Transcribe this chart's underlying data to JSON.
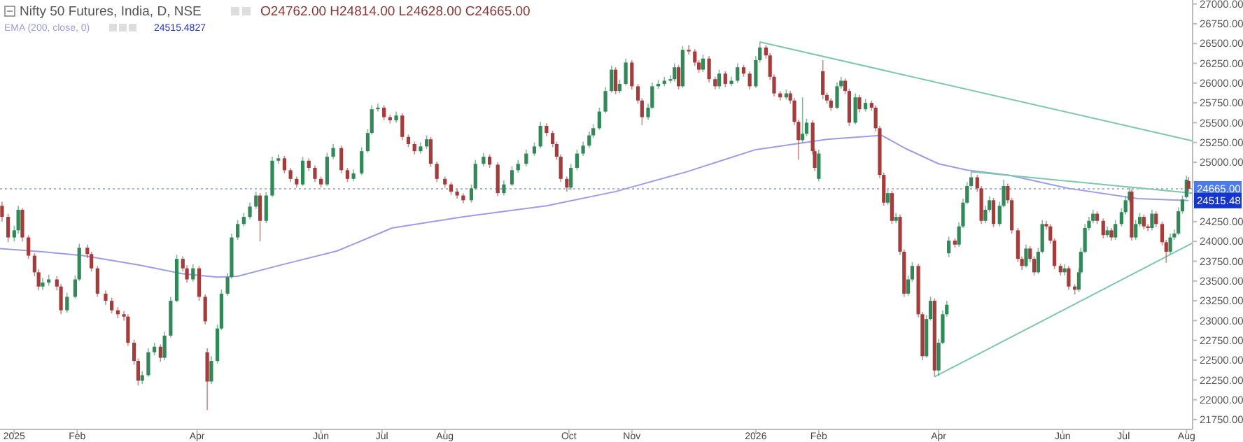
{
  "chart_data": {
    "type": "candlestick",
    "title": "Nifty 50 Futures, India, D, NSE",
    "annotations": [
      "O24762.00 H24814.00 L24628.00 C24665.00",
      "24515.4827",
      {
        "text": "24515.48",
        "x": "2026-08-04",
        "y": 24515.48
      }
    ],
    "legend": "top left",
    "grid": false,
    "xlim": [
      "2024-12-25",
      "2026-08-04"
    ],
    "xticks": [
      {
        "value": "2025-01-01",
        "label": "2025"
      },
      {
        "value": "2025-02-01",
        "label": "Feb"
      },
      {
        "value": "2025-04-01",
        "label": "Apr"
      },
      {
        "value": "2025-06-01",
        "label": "Jun"
      },
      {
        "value": "2025-07-01",
        "label": "Jul"
      },
      {
        "value": "2025-08-01",
        "label": "Aug"
      },
      {
        "value": "2025-10-01",
        "label": "Oct"
      },
      {
        "value": "2025-11-01",
        "label": "Nov"
      },
      {
        "value": "2026-01-01",
        "label": "2026"
      },
      {
        "value": "2026-02-01",
        "label": "Feb"
      },
      {
        "value": "2026-04-01",
        "label": "Apr"
      },
      {
        "value": "2026-06-01",
        "label": "Jun"
      },
      {
        "value": "2026-07-01",
        "label": "Jul"
      },
      {
        "value": "2026-08-01",
        "label": "Aug"
      }
    ],
    "ylim": [
      21625,
      27050
    ],
    "yticks": [
      {
        "value": 21750,
        "label": "21750.00"
      },
      {
        "value": 22000,
        "label": "22000.00"
      },
      {
        "value": 22250,
        "label": "22250.00"
      },
      {
        "value": 22500,
        "label": "22500.00"
      },
      {
        "value": 22750,
        "label": "22750.00"
      },
      {
        "value": 23000,
        "label": "23000.00"
      },
      {
        "value": 23250,
        "label": "23250.00"
      },
      {
        "value": 23500,
        "label": "23500.00"
      },
      {
        "value": 23750,
        "label": "23750.00"
      },
      {
        "value": 24000,
        "label": "24000.00"
      },
      {
        "value": 24250,
        "label": "24250.00"
      },
      {
        "value": 24500,
        "label": null
      },
      {
        "value": 24750,
        "label": null
      },
      {
        "value": 25000,
        "label": "25000.00"
      },
      {
        "value": 25250,
        "label": "25250.00"
      },
      {
        "value": 25500,
        "label": "25500.00"
      },
      {
        "value": 25750,
        "label": "25750.00"
      },
      {
        "value": 26000,
        "label": "26000.00"
      },
      {
        "value": 26250,
        "label": "26250.00"
      },
      {
        "value": 26500,
        "label": "26500.00"
      },
      {
        "value": 26750,
        "label": "26750.00"
      },
      {
        "value": 27000,
        "label": "27000.00"
      }
    ],
    "ref_lines": [
      {
        "axis": "y",
        "value": 24665,
        "label": "24665.00",
        "color": "#aab4dc",
        "line_style": "dotted"
      }
    ],
    "series": [
      {
        "type": "line",
        "name": "EMA (200, close, 0)",
        "color": "#9c9cec",
        "x": [
          "2024-12-25",
          "2025-01-15",
          "2025-02-04",
          "2025-03-04",
          "2025-03-25",
          "2025-04-11",
          "2025-04-21",
          "2025-05-12",
          "2025-06-09",
          "2025-07-06",
          "2025-08-10",
          "2025-09-20",
          "2025-10-24",
          "2025-11-28",
          "2026-01-01",
          "2026-02-05",
          "2026-03-04",
          "2026-03-16",
          "2026-04-01",
          "2026-04-15",
          "2026-05-05",
          "2026-06-04",
          "2026-07-08",
          "2026-08-02"
        ],
        "values": [
          23910,
          23870,
          23820,
          23700,
          23590,
          23550,
          23560,
          23700,
          23880,
          24170,
          24310,
          24450,
          24630,
          24880,
          25160,
          25290,
          25340,
          25170,
          24980,
          24900,
          24840,
          24670,
          24540,
          24515.48
        ]
      },
      {
        "type": "line",
        "color": "#7cc9a9",
        "x": [
          "2026-01-03",
          "2026-08-04"
        ],
        "values": [
          26520,
          25270
        ]
      },
      {
        "type": "line",
        "color": "#7cc9a9",
        "x": [
          "2026-04-17",
          "2026-08-04"
        ],
        "values": [
          24880,
          24610
        ]
      },
      {
        "type": "line",
        "color": "#7cc9a9",
        "x": [
          "2026-03-30",
          "2026-08-04"
        ],
        "values": [
          22290,
          23980
        ]
      },
      {
        "color": "#2e8b57",
        "x": [
          "2025-01-01",
          "2025-01-03",
          "2025-01-15",
          "2025-01-18",
          "2025-01-27",
          "2025-01-31",
          "2025-02-02",
          "2025-03-05",
          "2025-03-08",
          "2025-03-11",
          "2025-03-16",
          "2025-03-19",
          "2025-03-22",
          "2025-03-30",
          "2025-04-08",
          "2025-04-11",
          "2025-04-13",
          "2025-04-16",
          "2025-04-18",
          "2025-04-21",
          "2025-04-24",
          "2025-04-27",
          "2025-04-30",
          "2025-05-05",
          "2025-05-08",
          "2025-05-11",
          "2025-05-23",
          "2025-06-04",
          "2025-06-07",
          "2025-06-17",
          "2025-06-21",
          "2025-06-24",
          "2025-06-26",
          "2025-06-29",
          "2025-07-08",
          "2025-07-20",
          "2025-07-23",
          "2025-08-14",
          "2025-08-16",
          "2025-08-20",
          "2025-08-30",
          "2025-09-03",
          "2025-09-06",
          "2025-09-10",
          "2025-09-14",
          "2025-09-17",
          "2025-10-02",
          "2025-10-05",
          "2025-10-08",
          "2025-10-11",
          "2025-10-13",
          "2025-10-16",
          "2025-10-19",
          "2025-10-22",
          "2025-10-26",
          "2025-10-29",
          "2025-11-09",
          "2025-11-11",
          "2025-11-14",
          "2025-11-17",
          "2025-11-20",
          "2025-11-22",
          "2025-11-26",
          "2025-12-06",
          "2025-12-14",
          "2025-12-20",
          "2025-12-23",
          "2026-01-01",
          "2026-01-03",
          "2026-01-16",
          "2026-01-24",
          "2026-01-26",
          "2026-02-01",
          "2026-02-10",
          "2026-02-12",
          "2026-02-19",
          "2026-02-24",
          "2026-03-07",
          "2026-03-11",
          "2026-03-17",
          "2026-03-19",
          "2026-03-26",
          "2026-03-28",
          "2026-04-01",
          "2026-04-03",
          "2026-04-05",
          "2026-04-06",
          "2026-04-11",
          "2026-04-13",
          "2026-04-15",
          "2026-04-17",
          "2026-04-24",
          "2026-04-26",
          "2026-05-01",
          "2026-05-03",
          "2026-05-14",
          "2026-05-20",
          "2026-05-22",
          "2026-06-02",
          "2026-06-09",
          "2026-06-10",
          "2026-06-12",
          "2026-06-14",
          "2026-06-16",
          "2026-06-23",
          "2026-06-27",
          "2026-06-30",
          "2026-07-02",
          "2026-07-04",
          "2026-07-07",
          "2026-07-09",
          "2026-07-15",
          "2026-07-24",
          "2026-07-26",
          "2026-07-28",
          "2026-07-30",
          "2026-08-01"
        ],
        "ohlc": [
          [
            24050,
            24200,
            24000,
            24140
          ],
          [
            24140,
            24450,
            24100,
            24400
          ],
          [
            23430,
            23540,
            23390,
            23480
          ],
          [
            23480,
            23580,
            23440,
            23520
          ],
          [
            23130,
            23350,
            23100,
            23300
          ],
          [
            23300,
            23570,
            23280,
            23520
          ],
          [
            23520,
            23970,
            23500,
            23920
          ],
          [
            22240,
            22360,
            22200,
            22310
          ],
          [
            22310,
            22650,
            22290,
            22600
          ],
          [
            22600,
            22720,
            22560,
            22670
          ],
          [
            22530,
            22860,
            22500,
            22810
          ],
          [
            22810,
            23300,
            22790,
            23250
          ],
          [
            23250,
            23830,
            23230,
            23780
          ],
          [
            23520,
            23710,
            23490,
            23660
          ],
          [
            22230,
            22550,
            22200,
            22490
          ],
          [
            22490,
            22950,
            22460,
            22900
          ],
          [
            22900,
            23390,
            22880,
            23340
          ],
          [
            23340,
            23600,
            23310,
            23550
          ],
          [
            23550,
            24100,
            23530,
            24050
          ],
          [
            24050,
            24270,
            24020,
            24220
          ],
          [
            24220,
            24360,
            24190,
            24310
          ],
          [
            24310,
            24490,
            24280,
            24440
          ],
          [
            24440,
            24630,
            24410,
            24580
          ],
          [
            24260,
            24620,
            24230,
            24580
          ],
          [
            24580,
            25070,
            24560,
            25020
          ],
          [
            25020,
            25100,
            24980,
            25050
          ],
          [
            24720,
            25070,
            24700,
            25020
          ],
          [
            24720,
            25120,
            24700,
            25070
          ],
          [
            25070,
            25230,
            25040,
            25180
          ],
          [
            24790,
            24910,
            24760,
            24860
          ],
          [
            24860,
            25190,
            24840,
            25140
          ],
          [
            25140,
            25420,
            25120,
            25370
          ],
          [
            25370,
            25720,
            25350,
            25670
          ],
          [
            25670,
            25740,
            25640,
            25690
          ],
          [
            25530,
            25640,
            25500,
            25590
          ],
          [
            25140,
            25250,
            25110,
            25200
          ],
          [
            25200,
            25340,
            25170,
            25290
          ],
          [
            24520,
            24720,
            24490,
            24670
          ],
          [
            24670,
            25030,
            24650,
            24980
          ],
          [
            24980,
            25120,
            24950,
            25070
          ],
          [
            24610,
            24770,
            24580,
            24720
          ],
          [
            24720,
            24950,
            24700,
            24900
          ],
          [
            24900,
            25030,
            24870,
            24980
          ],
          [
            24980,
            25160,
            24950,
            25110
          ],
          [
            25110,
            25250,
            25080,
            25200
          ],
          [
            25200,
            25510,
            25180,
            25460
          ],
          [
            24680,
            24980,
            24650,
            24930
          ],
          [
            24930,
            25160,
            24900,
            25110
          ],
          [
            25110,
            25260,
            25080,
            25210
          ],
          [
            25210,
            25390,
            25180,
            25340
          ],
          [
            25340,
            25480,
            25310,
            25430
          ],
          [
            25430,
            25690,
            25410,
            25640
          ],
          [
            25640,
            25950,
            25620,
            25900
          ],
          [
            25900,
            26220,
            25880,
            26170
          ],
          [
            25900,
            26040,
            25870,
            25990
          ],
          [
            25990,
            26310,
            25970,
            26260
          ],
          [
            25570,
            25740,
            25540,
            25690
          ],
          [
            25690,
            26010,
            25670,
            25960
          ],
          [
            25960,
            26040,
            25930,
            25990
          ],
          [
            25990,
            26080,
            25960,
            26030
          ],
          [
            26030,
            26100,
            26000,
            26050
          ],
          [
            26050,
            26250,
            26020,
            26200
          ],
          [
            25960,
            26470,
            25940,
            26420
          ],
          [
            26170,
            26360,
            26140,
            26310
          ],
          [
            25960,
            26170,
            25930,
            26120
          ],
          [
            25990,
            26080,
            25960,
            26030
          ],
          [
            26030,
            26250,
            26000,
            26200
          ],
          [
            25960,
            26340,
            25940,
            26290
          ],
          [
            26290,
            26520,
            26260,
            26450
          ],
          [
            25820,
            25920,
            25790,
            25870
          ],
          [
            25280,
            25820,
            25250,
            25360
          ],
          [
            25360,
            25550,
            25330,
            25500
          ],
          [
            24790,
            25160,
            24760,
            25110
          ],
          [
            25690,
            26010,
            25670,
            25960
          ],
          [
            25960,
            26080,
            25930,
            26030
          ],
          [
            25500,
            25870,
            25480,
            25820
          ],
          [
            25670,
            25800,
            25640,
            25750
          ],
          [
            24490,
            24660,
            24460,
            24610
          ],
          [
            24260,
            24360,
            24230,
            24310
          ],
          [
            23340,
            23570,
            23310,
            23520
          ],
          [
            23520,
            23740,
            23490,
            23690
          ],
          [
            22550,
            23070,
            22530,
            23020
          ],
          [
            23020,
            23300,
            23000,
            23250
          ],
          [
            22370,
            22770,
            22300,
            22720
          ],
          [
            22720,
            23130,
            22700,
            23080
          ],
          [
            23080,
            23250,
            23050,
            23200
          ],
          [
            23850,
            24060,
            23800,
            24010
          ],
          [
            23960,
            24240,
            23930,
            24190
          ],
          [
            24190,
            24540,
            24170,
            24490
          ],
          [
            24490,
            24750,
            24470,
            24700
          ],
          [
            24700,
            24880,
            24680,
            24810
          ],
          [
            24260,
            24450,
            24230,
            24400
          ],
          [
            24400,
            24570,
            24370,
            24520
          ],
          [
            24220,
            24500,
            24190,
            24450
          ],
          [
            24450,
            24780,
            24430,
            24700
          ],
          [
            23690,
            23960,
            23670,
            23910
          ],
          [
            23610,
            23920,
            23590,
            23870
          ],
          [
            23870,
            24270,
            23850,
            24220
          ],
          [
            23610,
            23710,
            23570,
            23660
          ],
          [
            23390,
            23660,
            23360,
            23610
          ],
          [
            23610,
            23920,
            23590,
            23870
          ],
          [
            23870,
            24220,
            23850,
            24170
          ],
          [
            24170,
            24310,
            24140,
            24260
          ],
          [
            24260,
            24400,
            24230,
            24350
          ],
          [
            24080,
            24190,
            24050,
            24140
          ],
          [
            24050,
            24270,
            24020,
            24220
          ],
          [
            24220,
            24420,
            24190,
            24370
          ],
          [
            24370,
            24570,
            24340,
            24520
          ],
          [
            24520,
            24680,
            24490,
            24630
          ],
          [
            24050,
            24270,
            24020,
            24220
          ],
          [
            24220,
            24360,
            24190,
            24310
          ],
          [
            24170,
            24400,
            24140,
            24350
          ],
          [
            23870,
            24100,
            23840,
            24050
          ],
          [
            24050,
            24150,
            24020,
            24100
          ],
          [
            24100,
            24430,
            24080,
            24380
          ],
          [
            24380,
            24580,
            24350,
            24530
          ],
          [
            24560,
            24830,
            24540,
            24780
          ]
        ]
      },
      {
        "color": "#a83a3a",
        "x": [
          "2024-12-26",
          "2024-12-29",
          "2025-01-05",
          "2025-01-08",
          "2025-01-11",
          "2025-01-13",
          "2025-01-22",
          "2025-01-24",
          "2025-02-06",
          "2025-02-08",
          "2025-02-11",
          "2025-02-15",
          "2025-02-18",
          "2025-02-21",
          "2025-02-24",
          "2025-02-26",
          "2025-03-01",
          "2025-03-03",
          "2025-03-14",
          "2025-03-25",
          "2025-03-27",
          "2025-04-02",
          "2025-04-05",
          "2025-04-06",
          "2025-05-02",
          "2025-05-14",
          "2025-05-17",
          "2025-05-20",
          "2025-05-26",
          "2025-05-29",
          "2025-06-01",
          "2025-06-11",
          "2025-06-14",
          "2025-07-02",
          "2025-07-05",
          "2025-07-11",
          "2025-07-14",
          "2025-07-17",
          "2025-07-25",
          "2025-07-28",
          "2025-08-01",
          "2025-08-04",
          "2025-08-07",
          "2025-08-10",
          "2025-08-23",
          "2025-08-27",
          "2025-09-20",
          "2025-09-23",
          "2025-09-25",
          "2025-09-27",
          "2025-09-30",
          "2025-10-24",
          "2025-11-01",
          "2025-11-04",
          "2025-11-06",
          "2025-11-24",
          "2025-11-29",
          "2025-12-02",
          "2025-12-04",
          "2025-12-09",
          "2025-12-12",
          "2025-12-17",
          "2025-12-26",
          "2025-12-29",
          "2026-01-06",
          "2026-01-08",
          "2026-01-10",
          "2026-01-13",
          "2026-01-18",
          "2026-01-20",
          "2026-01-22",
          "2026-01-29",
          "2026-01-30",
          "2026-02-03",
          "2026-02-05",
          "2026-02-07",
          "2026-02-14",
          "2026-02-16",
          "2026-02-21",
          "2026-02-27",
          "2026-03-01",
          "2026-03-03",
          "2026-03-05",
          "2026-03-09",
          "2026-03-13",
          "2026-03-15",
          "2026-03-22",
          "2026-03-24",
          "2026-03-30",
          "2026-04-09",
          "2026-04-20",
          "2026-04-22",
          "2026-04-28",
          "2026-05-05",
          "2026-05-07",
          "2026-05-10",
          "2026-05-12",
          "2026-05-16",
          "2026-05-18",
          "2026-05-24",
          "2026-05-26",
          "2026-05-28",
          "2026-05-31",
          "2026-06-04",
          "2026-06-07",
          "2026-06-18",
          "2026-06-21",
          "2026-06-25",
          "2026-07-05",
          "2026-07-11",
          "2026-07-13",
          "2026-07-17",
          "2026-07-20",
          "2026-07-22",
          "2026-08-02"
        ],
        "ohlc": [
          [
            24450,
            24500,
            24250,
            24310
          ],
          [
            24310,
            24350,
            23990,
            24050
          ],
          [
            24400,
            24420,
            24000,
            24050
          ],
          [
            24050,
            24080,
            23780,
            23820
          ],
          [
            23820,
            23850,
            23560,
            23610
          ],
          [
            23610,
            23650,
            23380,
            23430
          ],
          [
            23520,
            23560,
            23380,
            23430
          ],
          [
            23430,
            23460,
            23080,
            23130
          ],
          [
            23920,
            23960,
            23790,
            23840
          ],
          [
            23840,
            23870,
            23620,
            23660
          ],
          [
            23660,
            23690,
            23300,
            23340
          ],
          [
            23340,
            23380,
            23200,
            23250
          ],
          [
            23250,
            23290,
            23090,
            23130
          ],
          [
            23130,
            23170,
            23030,
            23080
          ],
          [
            23080,
            23120,
            23000,
            23050
          ],
          [
            23050,
            23080,
            22680,
            22720
          ],
          [
            22720,
            22760,
            22440,
            22490
          ],
          [
            22490,
            22520,
            22180,
            22240
          ],
          [
            22670,
            22700,
            22480,
            22530
          ],
          [
            23780,
            23810,
            23620,
            23660
          ],
          [
            23660,
            23700,
            23480,
            23520
          ],
          [
            23660,
            23690,
            23250,
            23300
          ],
          [
            23300,
            23330,
            22950,
            22990
          ],
          [
            22600,
            22650,
            21870,
            22230
          ],
          [
            24580,
            24610,
            24000,
            24260
          ],
          [
            25050,
            25080,
            24860,
            24900
          ],
          [
            24900,
            24930,
            24750,
            24790
          ],
          [
            24790,
            24820,
            24680,
            24720
          ],
          [
            25020,
            25050,
            24890,
            24930
          ],
          [
            24930,
            24960,
            24750,
            24790
          ],
          [
            24790,
            24820,
            24680,
            24720
          ],
          [
            25180,
            25210,
            24860,
            24900
          ],
          [
            24900,
            24930,
            24750,
            24790
          ],
          [
            25690,
            25720,
            25530,
            25570
          ],
          [
            25570,
            25600,
            25490,
            25530
          ],
          [
            25590,
            25620,
            25280,
            25320
          ],
          [
            25320,
            25350,
            25190,
            25230
          ],
          [
            25230,
            25260,
            25100,
            25140
          ],
          [
            25290,
            25320,
            24940,
            24980
          ],
          [
            24980,
            25010,
            24750,
            24790
          ],
          [
            24790,
            24820,
            24680,
            24720
          ],
          [
            24720,
            24750,
            24590,
            24630
          ],
          [
            24630,
            24660,
            24540,
            24580
          ],
          [
            24580,
            24610,
            24480,
            24520
          ],
          [
            25070,
            25100,
            24930,
            24970
          ],
          [
            24970,
            25000,
            24570,
            24610
          ],
          [
            25460,
            25490,
            25330,
            25370
          ],
          [
            25370,
            25400,
            25190,
            25230
          ],
          [
            25230,
            25260,
            25030,
            25070
          ],
          [
            25070,
            25100,
            24750,
            24790
          ],
          [
            24790,
            24820,
            24630,
            24680
          ],
          [
            26170,
            26200,
            25860,
            25900
          ],
          [
            26260,
            26290,
            25920,
            25960
          ],
          [
            25960,
            25990,
            25740,
            25780
          ],
          [
            25780,
            25810,
            25470,
            25570
          ],
          [
            26200,
            26230,
            25920,
            25960
          ],
          [
            26420,
            26480,
            26360,
            26400
          ],
          [
            26400,
            26430,
            26220,
            26260
          ],
          [
            26260,
            26290,
            26130,
            26170
          ],
          [
            26310,
            26340,
            26010,
            26050
          ],
          [
            26050,
            26080,
            25920,
            25960
          ],
          [
            26120,
            26150,
            25950,
            25990
          ],
          [
            26200,
            26230,
            26080,
            26120
          ],
          [
            26120,
            26150,
            25920,
            25960
          ],
          [
            26450,
            26480,
            26310,
            26350
          ],
          [
            26350,
            26380,
            26040,
            26080
          ],
          [
            26080,
            26110,
            25830,
            25870
          ],
          [
            25870,
            25900,
            25780,
            25820
          ],
          [
            25870,
            25900,
            25740,
            25780
          ],
          [
            25780,
            25810,
            25470,
            25510
          ],
          [
            25510,
            25540,
            25030,
            25280
          ],
          [
            25500,
            25530,
            25100,
            25140
          ],
          [
            25140,
            25170,
            24890,
            24930
          ],
          [
            26150,
            26290,
            25800,
            25850
          ],
          [
            25850,
            25880,
            25740,
            25780
          ],
          [
            25780,
            25810,
            25650,
            25690
          ],
          [
            26030,
            26060,
            25860,
            25900
          ],
          [
            25900,
            25930,
            25460,
            25500
          ],
          [
            25820,
            25850,
            25630,
            25670
          ],
          [
            25750,
            25780,
            25650,
            25690
          ],
          [
            25690,
            25720,
            25390,
            25430
          ],
          [
            25430,
            25460,
            24800,
            24840
          ],
          [
            24840,
            24870,
            24450,
            24490
          ],
          [
            24610,
            24640,
            24220,
            24260
          ],
          [
            24310,
            24340,
            23830,
            23870
          ],
          [
            23870,
            23900,
            23300,
            23340
          ],
          [
            23690,
            23720,
            23040,
            23080
          ],
          [
            23080,
            23110,
            22500,
            22550
          ],
          [
            23250,
            23280,
            22290,
            22370
          ],
          [
            24010,
            24040,
            23920,
            23960
          ],
          [
            24810,
            24840,
            24630,
            24670
          ],
          [
            24670,
            24700,
            24220,
            24260
          ],
          [
            24520,
            24550,
            24180,
            24220
          ],
          [
            24700,
            24730,
            24480,
            24520
          ],
          [
            24520,
            24550,
            24100,
            24140
          ],
          [
            24140,
            24170,
            23740,
            23780
          ],
          [
            23780,
            23810,
            23640,
            23690
          ],
          [
            23910,
            23940,
            23740,
            23780
          ],
          [
            23780,
            23810,
            23570,
            23610
          ],
          [
            24220,
            24260,
            24150,
            24190
          ],
          [
            24190,
            24220,
            23970,
            24010
          ],
          [
            24010,
            24040,
            23650,
            23690
          ],
          [
            23690,
            23720,
            23570,
            23610
          ],
          [
            23660,
            23690,
            23390,
            23430
          ],
          [
            23430,
            23460,
            23330,
            23390
          ],
          [
            24350,
            24380,
            24220,
            24260
          ],
          [
            24260,
            24290,
            24040,
            24080
          ],
          [
            24140,
            24170,
            24010,
            24050
          ],
          [
            24630,
            24660,
            24010,
            24050
          ],
          [
            24310,
            24340,
            24150,
            24190
          ],
          [
            24190,
            24220,
            24130,
            24170
          ],
          [
            24350,
            24380,
            24180,
            24220
          ],
          [
            24220,
            24250,
            23950,
            23990
          ],
          [
            23990,
            24020,
            23730,
            23870
          ],
          [
            24762,
            24814,
            24628,
            24665
          ]
        ]
      }
    ]
  }
}
